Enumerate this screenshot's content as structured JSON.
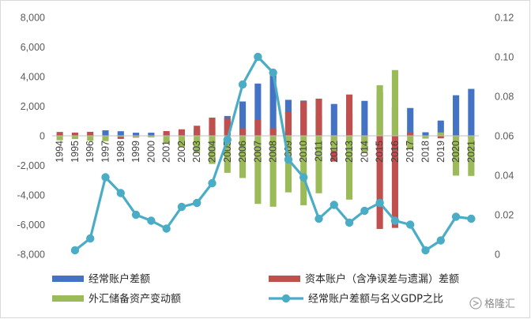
{
  "chart_data": {
    "type": "bar",
    "categories": [
      "1994",
      "1995",
      "1996",
      "1997",
      "1998",
      "1999",
      "2000",
      "2001",
      "2002",
      "2003",
      "2004",
      "2005",
      "2006",
      "2007",
      "2008",
      "2009",
      "2010",
      "2011",
      "2012",
      "2013",
      "2014",
      "2015",
      "2016",
      "2017",
      "2018",
      "2019",
      "2020",
      "2021"
    ],
    "series": [
      {
        "name": "经常账户差额",
        "kind": "bar",
        "axis": "left",
        "color": "#4472C4",
        "values": [
          80,
          20,
          70,
          370,
          310,
          210,
          210,
          170,
          350,
          430,
          690,
          1340,
          2320,
          3530,
          4200,
          2430,
          2380,
          1360,
          2150,
          1480,
          2360,
          2930,
          1920,
          1880,
          240,
          1030,
          2740,
          3170
        ]
      },
      {
        "name": "资本账户（含净误差与遗漏）差额",
        "kind": "bar",
        "axis": "left",
        "color": "#C0504D",
        "values": [
          260,
          220,
          270,
          -30,
          -210,
          -120,
          -60,
          320,
          440,
          680,
          1230,
          1160,
          500,
          1070,
          510,
          1600,
          2320,
          2510,
          -1740,
          2790,
          -560,
          -6290,
          -6220,
          260,
          -20,
          -170,
          -70,
          -170
        ]
      },
      {
        "name": "外汇储备资产变动额",
        "kind": "bar",
        "axis": "left",
        "color": "#9BBB59",
        "values": [
          -300,
          -220,
          -330,
          -360,
          -60,
          -90,
          -110,
          -470,
          -760,
          -1170,
          -1900,
          -2500,
          -2850,
          -4600,
          -4790,
          -3820,
          -4690,
          -3880,
          -1000,
          -4310,
          -1170,
          3420,
          4440,
          -920,
          -190,
          230,
          -2690,
          -2710
        ]
      },
      {
        "name": "经常账户差额与名义GDP之比",
        "kind": "line",
        "axis": "right",
        "color": "#4BACC6",
        "values": [
          null,
          0.002,
          0.008,
          0.039,
          0.031,
          0.02,
          0.017,
          0.013,
          0.024,
          0.026,
          0.036,
          0.058,
          0.086,
          0.1,
          0.092,
          0.048,
          0.039,
          0.018,
          0.025,
          0.016,
          0.022,
          0.026,
          0.017,
          0.015,
          0.002,
          0.007,
          0.019,
          0.018
        ]
      }
    ],
    "ylim_left": [
      -8000,
      8000
    ],
    "yticks_left": [
      -8000,
      -6000,
      -4000,
      -2000,
      0,
      2000,
      4000,
      6000,
      8000
    ],
    "ylim_right": [
      0,
      0.12
    ],
    "yticks_right": [
      0,
      0.02,
      0.04,
      0.06,
      0.08,
      0.1,
      0.12
    ],
    "grid": false,
    "legend_position": "bottom",
    "title": "",
    "xlabel": "",
    "ylabel": ""
  },
  "watermark": {
    "text": "格隆汇"
  }
}
